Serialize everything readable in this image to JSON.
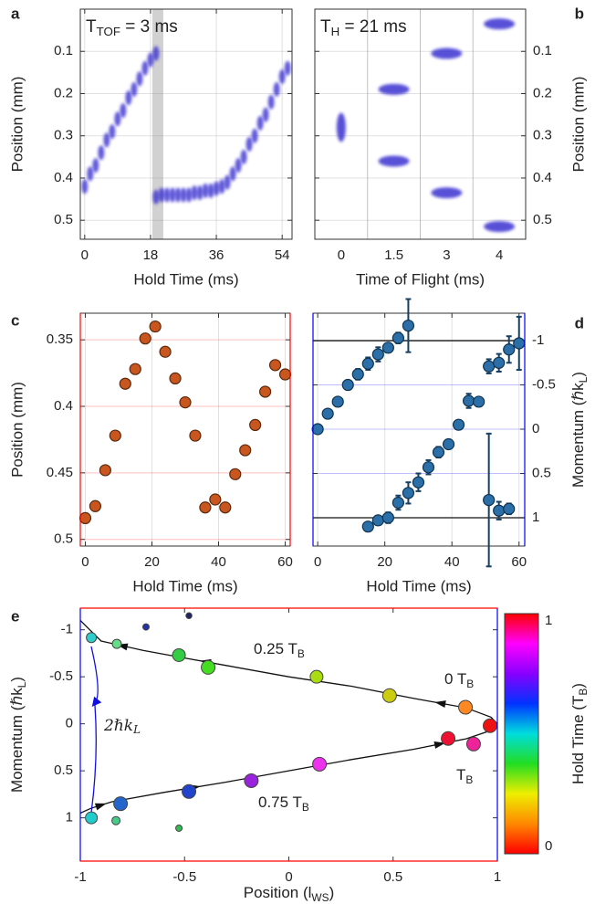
{
  "chart_data": [
    {
      "type": "image",
      "label": "a",
      "annotation": [
        "T",
        "TOF",
        " = 3 ms"
      ],
      "xlabel": "Hold Time (ms)",
      "ylabel": "Position (mm)",
      "xlim": [
        -1.2,
        56.7
      ],
      "ylim": [
        0,
        0.545
      ],
      "y_inverted": true,
      "xticks": [
        0,
        18,
        36,
        54
      ],
      "yticks": [
        0.1,
        0.2,
        0.3,
        0.4,
        0.5
      ],
      "grid": true,
      "highlight_x": [
        18.5,
        21.5
      ],
      "color": "#3b30d0",
      "x": [
        0,
        1.5,
        3,
        4.5,
        6,
        7.5,
        9,
        10.5,
        12,
        13.5,
        15,
        16.5,
        18,
        19.5,
        19.5,
        21,
        22.5,
        24,
        25.5,
        27,
        28.5,
        30,
        31.5,
        33,
        34.5,
        36,
        37.5,
        39,
        40.5,
        42,
        43.5,
        45,
        46.5,
        48,
        49.5,
        51,
        52.5,
        54,
        55.5
      ],
      "values": [
        0.42,
        0.39,
        0.37,
        0.34,
        0.31,
        0.29,
        0.26,
        0.24,
        0.21,
        0.19,
        0.165,
        0.14,
        0.12,
        0.105,
        0.445,
        0.44,
        0.44,
        0.44,
        0.44,
        0.44,
        0.44,
        0.435,
        0.435,
        0.43,
        0.43,
        0.425,
        0.42,
        0.41,
        0.39,
        0.37,
        0.35,
        0.32,
        0.3,
        0.27,
        0.25,
        0.22,
        0.19,
        0.16,
        0.14
      ]
    },
    {
      "type": "image",
      "label": "b",
      "annotation": [
        "T",
        "H",
        " = 21 ms"
      ],
      "xlabel": "Time of Flight (ms)",
      "ylabel": "Position (mm)",
      "ylim": [
        0,
        0.545
      ],
      "y_inverted": true,
      "yticks": [
        0.1,
        0.2,
        0.3,
        0.4,
        0.5
      ],
      "y_side": "right",
      "grid": true,
      "categories": [
        "0",
        "1.5",
        "3",
        "4"
      ],
      "series": [
        {
          "color": "#3b30d0",
          "values": [
            0.28,
            0.19,
            0.105,
            0.035
          ]
        },
        {
          "color": "#3b30d0",
          "values": [
            null,
            0.36,
            0.435,
            0.515
          ]
        }
      ]
    },
    {
      "type": "scatter",
      "label": "c",
      "xlabel": "Hold Time (ms)",
      "ylabel": "Position (mm)",
      "xlim": [
        -1.5,
        61.5
      ],
      "ylim": [
        0.33,
        0.505
      ],
      "y_inverted": true,
      "xticks": [
        0,
        20,
        40,
        60
      ],
      "yticks": [
        0.35,
        0.4,
        0.45,
        0.5
      ],
      "grid": true,
      "y_axis_color": "#ff0000",
      "color": "#c8561e",
      "x": [
        0,
        3,
        6,
        9,
        12,
        15,
        18,
        21,
        24,
        27,
        30,
        33,
        36,
        39,
        42,
        45,
        48,
        51,
        54,
        57,
        60
      ],
      "values": [
        0.484,
        0.475,
        0.448,
        0.422,
        0.383,
        0.372,
        0.349,
        0.34,
        0.359,
        0.379,
        0.397,
        0.422,
        0.476,
        0.47,
        0.476,
        0.451,
        0.433,
        0.414,
        0.389,
        0.369,
        0.376
      ]
    },
    {
      "type": "errorbar",
      "label": "d",
      "xlabel": "Hold Time (ms)",
      "ylabel": [
        "Momentum (ℏk",
        "L",
        ")"
      ],
      "xlim": [
        -1.4,
        61.7
      ],
      "ylim": [
        -1.31,
        1.32
      ],
      "y_inverted": true,
      "xticks": [
        0,
        20,
        40,
        60
      ],
      "yticks": [
        -1,
        -0.5,
        0,
        0.5,
        1
      ],
      "grid": true,
      "y_side": "right",
      "y_axis_color": "#0000ff",
      "color": "#2c6fa8",
      "hlines": [
        -1,
        1
      ],
      "x": [
        0,
        3,
        6,
        9,
        12,
        15,
        18,
        21,
        24,
        27,
        15,
        18,
        21,
        24,
        27,
        30,
        33,
        36,
        39,
        42,
        45,
        48,
        51,
        54,
        57,
        60,
        51,
        54,
        57
      ],
      "values": [
        0,
        -0.175,
        -0.31,
        -0.5,
        -0.62,
        -0.74,
        -0.845,
        -0.92,
        -1.03,
        -1.17,
        1.1,
        1.03,
        1.0,
        0.83,
        0.72,
        0.6,
        0.43,
        0.26,
        0.17,
        -0.05,
        -0.32,
        -0.31,
        -0.71,
        -0.75,
        -0.9,
        -0.97,
        0.8,
        0.92,
        0.9
      ],
      "errors": [
        0.03,
        0.04,
        0.04,
        0.05,
        0.06,
        0.07,
        0.08,
        0.05,
        0.06,
        0.3,
        0.04,
        0.05,
        0.06,
        0.08,
        0.12,
        0.1,
        0.08,
        0.06,
        0.05,
        0.05,
        0.08,
        0.05,
        0.08,
        0.1,
        0.15,
        0.3,
        0.75,
        0.1,
        0.06
      ]
    },
    {
      "type": "phase",
      "label": "e",
      "xlabel": [
        "Position (l",
        "WS",
        ")"
      ],
      "ylabel": [
        "Momentum (ℏk",
        "L",
        ")"
      ],
      "xlim": [
        -1,
        1
      ],
      "ylim": [
        -1.23,
        1.46
      ],
      "y_inverted": true,
      "xticks": [
        -1,
        -0.5,
        0,
        0.5,
        1
      ],
      "yticks": [
        -1,
        -0.5,
        0,
        0.5,
        1
      ],
      "x_axis_color": "#ff0000",
      "y_axis_color": "#0000ff",
      "x": [
        -0.947,
        -0.825,
        -0.685,
        -0.479,
        -0.527,
        -0.387,
        0.133,
        0.483,
        0.847,
        0.965,
        0.886,
        0.764,
        0.147,
        -0.18,
        -0.479,
        -0.807,
        -0.947,
        -0.829,
        -0.527
      ],
      "values": [
        -0.917,
        -0.85,
        -1.03,
        -1.15,
        -0.73,
        -0.6,
        -0.5,
        -0.3,
        -0.176,
        0.02,
        0.215,
        0.156,
        0.43,
        0.605,
        0.72,
        0.85,
        1.0,
        1.03,
        1.11
      ],
      "sizes": [
        0.6,
        0.5,
        0.2,
        0.15,
        0.9,
        1,
        0.9,
        1,
        1,
        1,
        1,
        1,
        1,
        1,
        1,
        1,
        0.8,
        0.4,
        0.2
      ],
      "colors": [
        "#33cccc",
        "#66dd88",
        "#2233aa",
        "#222266",
        "#33cc44",
        "#44dd22",
        "#aadd11",
        "#cccc11",
        "#ff8822",
        "#ee1111",
        "#ee2299",
        "#ee1133",
        "#ee33ee",
        "#9922dd",
        "#2244cc",
        "#2266cc",
        "#22cccc",
        "#44cc88",
        "#33bb55"
      ],
      "curve": {
        "x": [
          1,
          0.97,
          0.85,
          0.6,
          0.3,
          0,
          -0.3,
          -0.5,
          -0.7,
          -0.9,
          -1,
          null,
          -1,
          -0.95,
          -0.85,
          -0.6,
          -0.3,
          0,
          0.3,
          0.6,
          0.85,
          0.97,
          1
        ],
        "values": [
          0,
          -0.07,
          -0.17,
          -0.27,
          -0.4,
          -0.5,
          -0.62,
          -0.7,
          -0.78,
          -0.88,
          -1.1,
          null,
          0.95,
          0.9,
          0.83,
          0.73,
          0.62,
          0.5,
          0.38,
          0.27,
          0.16,
          0.07,
          0
        ]
      },
      "annotations": [
        [
          "0.25 T",
          "B"
        ],
        [
          "0 T",
          "B"
        ],
        [
          "T",
          "B"
        ],
        [
          "0.75 T",
          "B"
        ],
        [
          "2ℏk",
          "L"
        ]
      ],
      "colorbar": {
        "label": [
          "Hold Time (T",
          "B",
          ")"
        ],
        "lim": [
          0,
          1
        ],
        "ticks": [
          0,
          1
        ],
        "colors": [
          "#ff0000",
          "#ff8800",
          "#eeee00",
          "#22dd22",
          "#00dddd",
          "#0033ff",
          "#8800ff",
          "#ff00ff",
          "#ff0000"
        ]
      }
    }
  ]
}
